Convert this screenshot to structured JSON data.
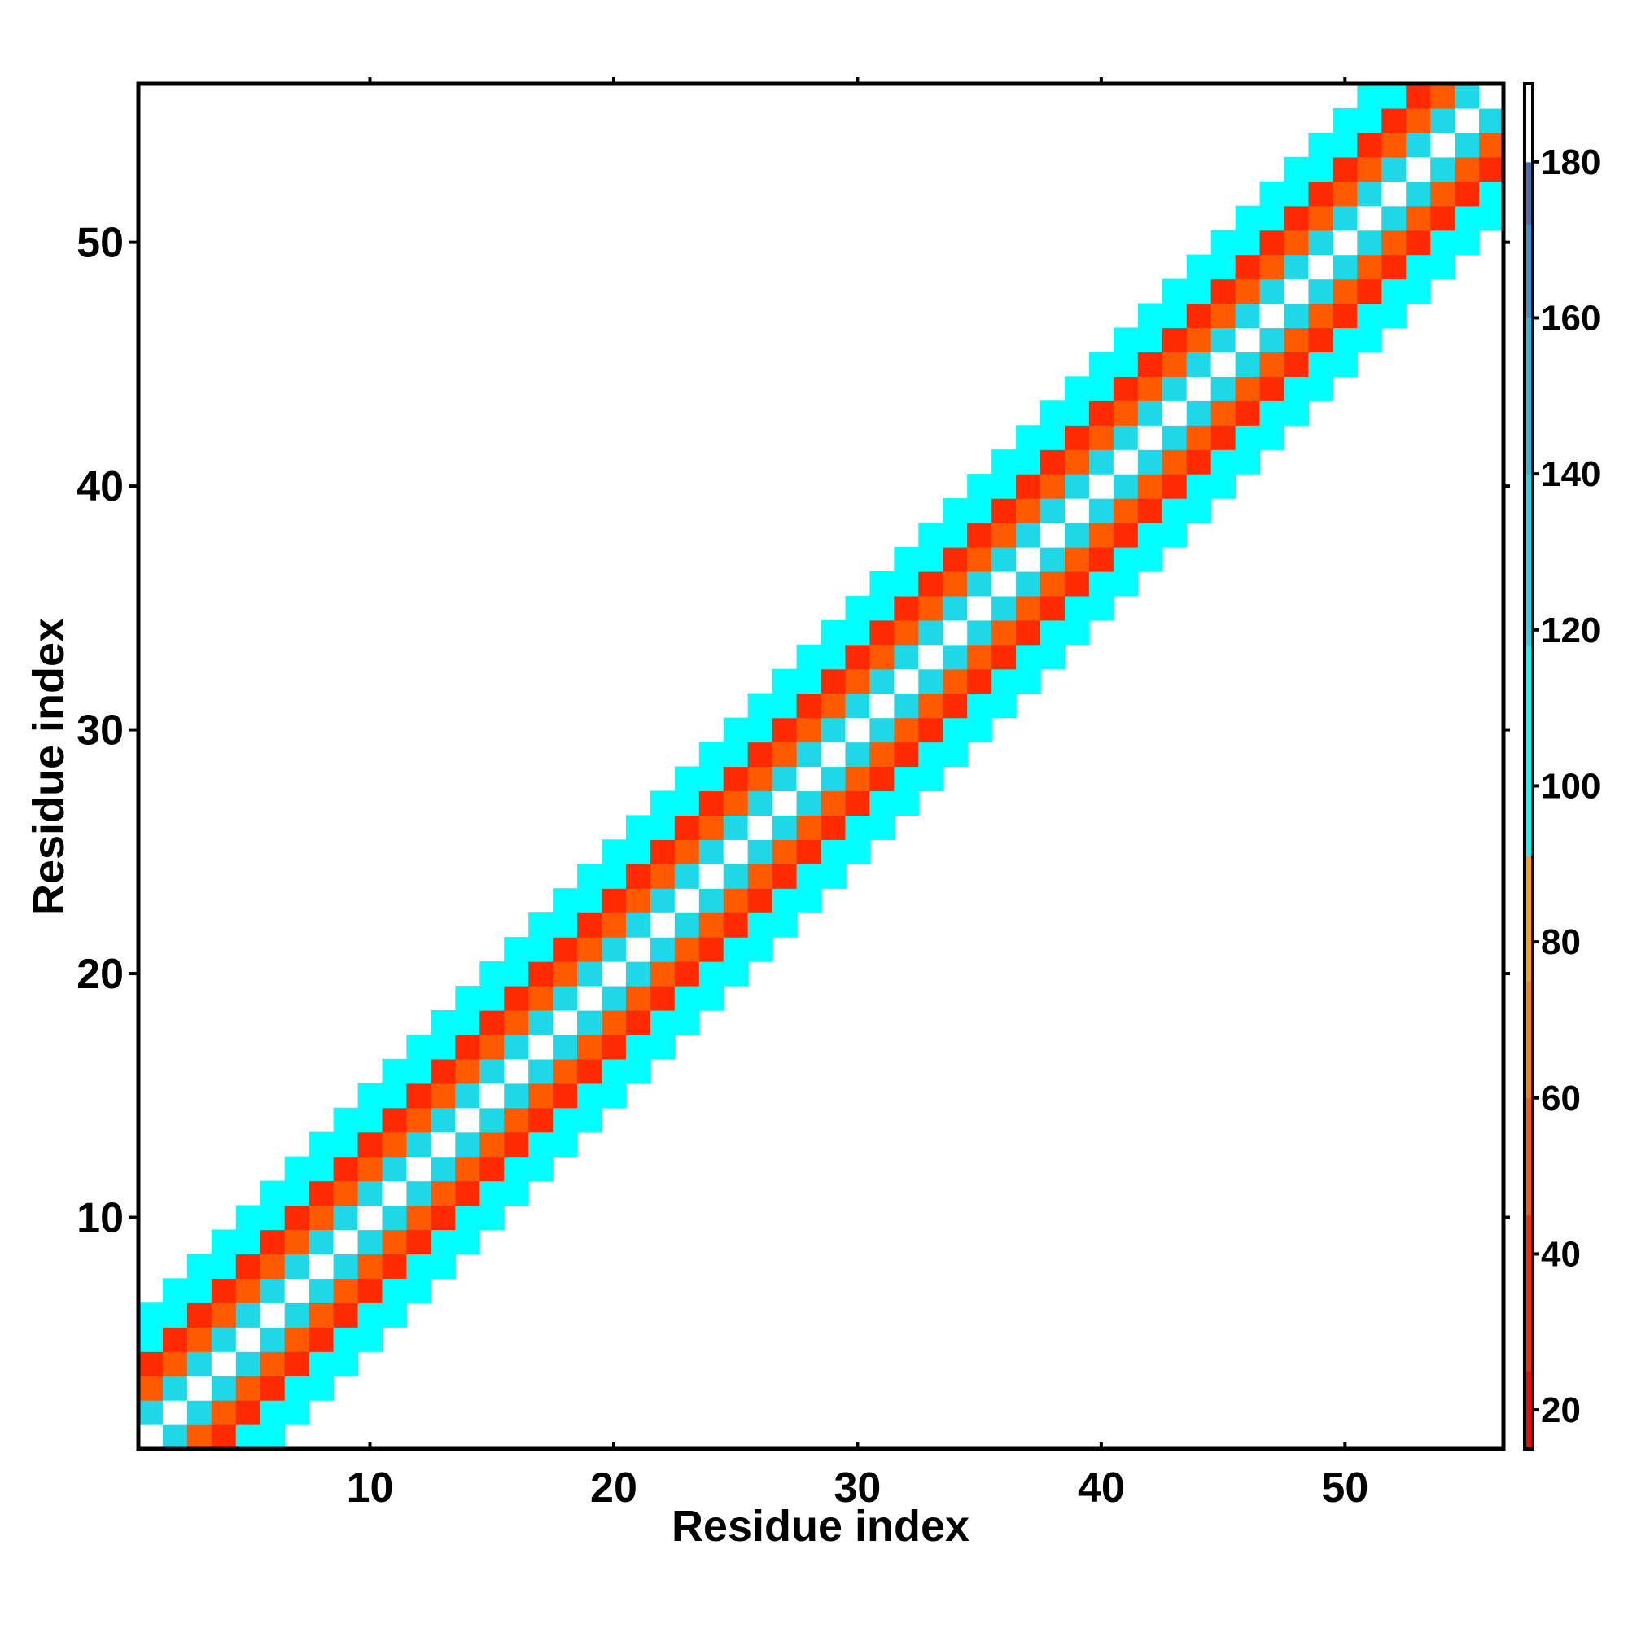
{
  "chart_data": {
    "type": "heatmap",
    "xlabel": "Residue index",
    "ylabel": "Residue index",
    "xlim": [
      0.5,
      56.5
    ],
    "ylim": [
      0.5,
      56.5
    ],
    "x_ticks": [
      "10",
      "20",
      "30",
      "40",
      "50"
    ],
    "y_ticks": [
      "10",
      "20",
      "30",
      "40",
      "50"
    ],
    "tick_values": [
      10,
      20,
      30,
      40,
      50
    ],
    "colorbar": {
      "range": [
        15,
        190
      ],
      "ticks": [
        "20",
        "40",
        "60",
        "80",
        "100",
        "120",
        "140",
        "160",
        "180"
      ],
      "tick_values": [
        20,
        40,
        60,
        80,
        100,
        120,
        140,
        160,
        180
      ],
      "segments": [
        {
          "from": 15,
          "to": 25,
          "color": "#ff0000"
        },
        {
          "from": 25,
          "to": 45,
          "color": "#ff2a00"
        },
        {
          "from": 45,
          "to": 60,
          "color": "#ff5a00"
        },
        {
          "from": 60,
          "to": 75,
          "color": "#ff7f00"
        },
        {
          "from": 75,
          "to": 91,
          "color": "#ffa000"
        },
        {
          "from": 91,
          "to": 118,
          "color": "#00ffff"
        },
        {
          "from": 118,
          "to": 140,
          "color": "#1ed8e8"
        },
        {
          "from": 140,
          "to": 160,
          "color": "#28b8e0"
        },
        {
          "from": 160,
          "to": 172,
          "color": "#3a90d0"
        },
        {
          "from": 172,
          "to": 180,
          "color": "#4a6db0"
        },
        {
          "from": 180,
          "to": 190,
          "color": "#ffffff"
        }
      ]
    },
    "band_pattern": [
      {
        "offset": 0,
        "value": 185
      },
      {
        "offset": 1,
        "value": 125
      },
      {
        "offset": 2,
        "value": 55
      },
      {
        "offset": 3,
        "value": 30
      },
      {
        "offset": 4,
        "value": 100
      },
      {
        "offset": 5,
        "value": 105
      }
    ],
    "values_note": "cell value for residue pair (i, j) is given by band_pattern at |i - j|; no value beyond offset 5",
    "n_residues": 56
  },
  "colors": {
    "axis": "#000000",
    "background": "#ffffff"
  }
}
